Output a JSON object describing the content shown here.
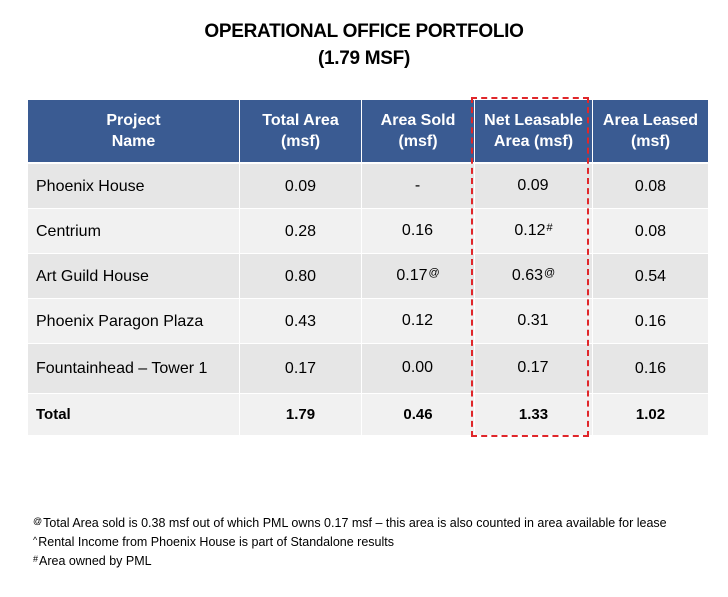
{
  "title": {
    "line1": "OPERATIONAL OFFICE PORTFOLIO",
    "line2": "(1.79 MSF)"
  },
  "table": {
    "headers": [
      {
        "line1": "Project",
        "line2": "Name"
      },
      {
        "line1": "Total Area",
        "line2": "(msf)"
      },
      {
        "line1": "Area Sold",
        "line2": "(msf)"
      },
      {
        "line1": "Net Leasable",
        "line2": "Area (msf)"
      },
      {
        "line1": "Area Leased",
        "line2": "(msf)"
      }
    ],
    "rows": [
      {
        "name": "Phoenix House",
        "total_area": "0.09",
        "area_sold": "-",
        "area_sold_sup": "",
        "net_leasable": "0.09",
        "net_leasable_sup": "",
        "area_leased": "0.08"
      },
      {
        "name": "Centrium",
        "total_area": "0.28",
        "area_sold": "0.16",
        "area_sold_sup": "",
        "net_leasable": "0.12",
        "net_leasable_sup": "#",
        "area_leased": "0.08"
      },
      {
        "name": "Art Guild House",
        "total_area": "0.80",
        "area_sold": "0.17",
        "area_sold_sup": "@",
        "net_leasable": "0.63",
        "net_leasable_sup": "@",
        "area_leased": "0.54"
      },
      {
        "name": "Phoenix Paragon Plaza",
        "total_area": "0.43",
        "area_sold": "0.12",
        "area_sold_sup": "",
        "net_leasable": "0.31",
        "net_leasable_sup": "",
        "area_leased": "0.16"
      },
      {
        "name": "Fountainhead – Tower 1",
        "total_area": "0.17",
        "area_sold": "0.00",
        "area_sold_sup": "",
        "net_leasable": "0.17",
        "net_leasable_sup": "",
        "area_leased": "0.16"
      }
    ],
    "total": {
      "name": "Total",
      "total_area": "1.79",
      "area_sold": "0.46",
      "net_leasable": "1.33",
      "area_leased": "1.02"
    }
  },
  "notes": [
    {
      "symbol": "@",
      "text": "Total Area sold is 0.38 msf out of which PML owns 0.17 msf – this area is also counted in area available for lease"
    },
    {
      "symbol": "^",
      "text": "Rental Income from Phoenix House is part of Standalone results"
    },
    {
      "symbol": "#",
      "text": "Area owned by PML"
    }
  ],
  "colors": {
    "header_bg": "#3a5b92",
    "row_bg": "#e6e6e6",
    "row_alt_bg": "#f1f1f1",
    "highlight_border": "#e0262a"
  }
}
